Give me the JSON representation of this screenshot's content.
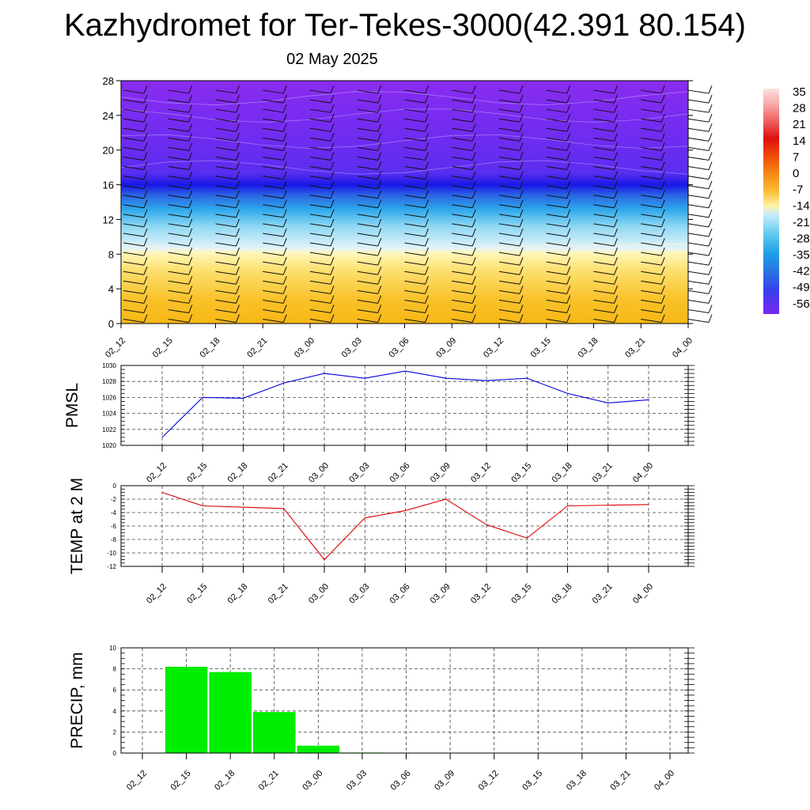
{
  "header": {
    "title": "Kazhydromet for Ter-Tekes-3000(42.391 80.154)",
    "subtitle": "02 May 2025"
  },
  "colorbar": {
    "labels": [
      "35",
      "28",
      "21",
      "14",
      "7",
      "0",
      "-7",
      "-14",
      "-21",
      "-28",
      "-35",
      "-42",
      "-49",
      "-56"
    ],
    "colors": [
      "#fde0e0",
      "#f7a8a8",
      "#ee5a5a",
      "#e01010",
      "#f04a0a",
      "#f78a14",
      "#fbc23a",
      "#fff3a8",
      "#c8ecfb",
      "#5cc8f0",
      "#1e9fe8",
      "#2a6ee0",
      "#3a3cf0",
      "#7a28f0"
    ]
  },
  "chart_data": [
    {
      "type": "heatmap",
      "name": "vertical-section",
      "x": [
        "02_12",
        "02_15",
        "02_18",
        "02_21",
        "03_00",
        "03_03",
        "03_06",
        "03_09",
        "03_12",
        "03_15",
        "03_18",
        "03_21",
        "04_00"
      ],
      "yticks": [
        "0",
        "4",
        "8",
        "12",
        "16",
        "20",
        "24",
        "28"
      ],
      "ylim": [
        0,
        28
      ],
      "title": "",
      "xlabel": "",
      "ylabel": ""
    },
    {
      "type": "line",
      "name": "PMSL",
      "ylabel": "PMSL",
      "color": "#0000dd",
      "x": [
        "02_12",
        "02_15",
        "02_18",
        "02_21",
        "03_00",
        "03_03",
        "03_06",
        "03_09",
        "03_12",
        "03_15",
        "03_18",
        "03_21",
        "04_00"
      ],
      "values": [
        1021.0,
        1026.0,
        1025.9,
        1027.8,
        1029.0,
        1028.4,
        1029.3,
        1028.4,
        1028.1,
        1028.4,
        1026.5,
        1025.3,
        1025.7
      ],
      "ylim": [
        1020,
        1030
      ],
      "yticks": [
        "1020",
        "1022",
        "1024",
        "1026",
        "1028",
        "1030"
      ],
      "grid": true
    },
    {
      "type": "line",
      "name": "TEMP at 2 M",
      "ylabel": "TEMP at 2 M",
      "color": "#dd0000",
      "x": [
        "02_12",
        "02_15",
        "02_18",
        "02_21",
        "03_00",
        "03_03",
        "03_06",
        "03_09",
        "03_12",
        "03_15",
        "03_18",
        "03_21",
        "04_00"
      ],
      "values": [
        -1.0,
        -3.0,
        -3.2,
        -3.4,
        -11.0,
        -4.8,
        -3.7,
        -2.0,
        -5.8,
        -7.8,
        -3.0,
        -2.9,
        -2.8
      ],
      "ylim": [
        -12,
        0
      ],
      "yticks": [
        "0",
        "-2",
        "-4",
        "-6",
        "-8",
        "-10",
        "-12"
      ],
      "grid": true
    },
    {
      "type": "bar",
      "name": "PRECIP, mm",
      "ylabel": "PRECIP, mm",
      "color": "#00ee00",
      "categories": [
        "02_12",
        "02_15",
        "02_18",
        "02_21",
        "03_00",
        "03_03",
        "03_06",
        "03_09",
        "03_12",
        "03_15",
        "03_18",
        "03_21",
        "04_00"
      ],
      "values": [
        0,
        8.2,
        7.7,
        3.9,
        0.7,
        0.05,
        0,
        0,
        0,
        0,
        0,
        0,
        0
      ],
      "ylim": [
        0,
        10
      ],
      "yticks": [
        "0",
        "2",
        "4",
        "6",
        "8",
        "10"
      ],
      "grid": true
    }
  ]
}
